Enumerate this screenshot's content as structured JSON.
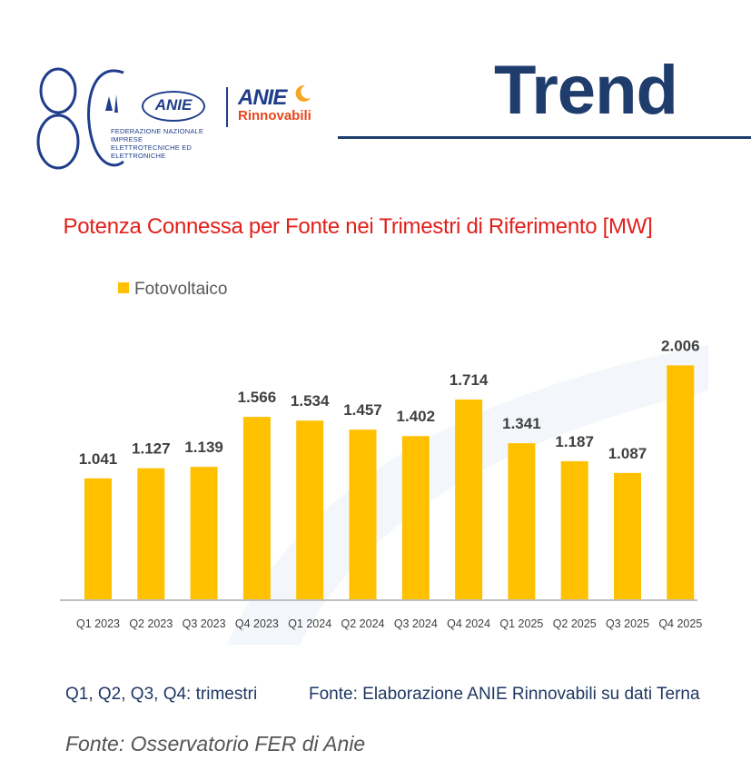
{
  "header": {
    "logo_number": "80",
    "anie_logo_text": "ANIE",
    "anie_subtitle_line1": "FEDERAZIONE NAZIONALE IMPRESE",
    "anie_subtitle_line2": "ELETTROTECNICHE ED ELETTRONICHE",
    "anie_rinnovabili_top": "ANIE",
    "anie_rinnovabili_bottom": "Rinnovabili",
    "page_title": "Trend"
  },
  "colors": {
    "bar": "#ffc000",
    "title_red": "#e1201b",
    "navy": "#1f3d6c",
    "axis": "#bfbfbf"
  },
  "chart_data": {
    "type": "bar",
    "title": "Potenza Connessa per Fonte nei Trimestri di Riferimento [MW]",
    "categories": [
      "Q1 2023",
      "Q2 2023",
      "Q3 2023",
      "Q4 2023",
      "Q1 2024",
      "Q2 2024",
      "Q3 2024",
      "Q4 2024",
      "Q1 2025",
      "Q2 2025",
      "Q3 2025",
      "Q4 2025"
    ],
    "series": [
      {
        "name": "Fotovoltaico",
        "values": [
          1041,
          1127,
          1139,
          1566,
          1534,
          1457,
          1402,
          1714,
          1341,
          1187,
          1087,
          2006
        ],
        "labels": [
          "1.041",
          "1.127",
          "1.139",
          "1.566",
          "1.534",
          "1.457",
          "1.402",
          "1.714",
          "1.341",
          "1.187",
          "1.087",
          "2.006"
        ]
      }
    ],
    "ylim": [
      0,
      2800
    ],
    "grid": false,
    "legend": "top-left"
  },
  "footer": {
    "note_left": "Q1, Q2, Q3, Q4: trimestri",
    "note_right": "Fonte: Elaborazione ANIE Rinnovabili su dati Terna",
    "source": "Fonte: Osservatorio FER di Anie"
  }
}
